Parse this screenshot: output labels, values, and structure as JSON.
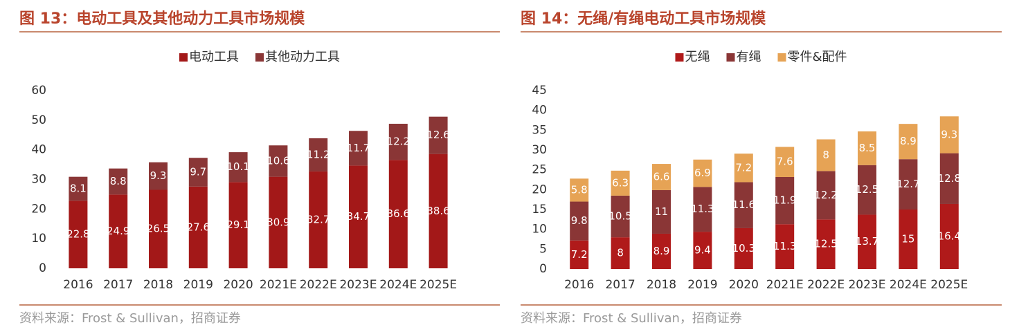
{
  "chart_data": [
    {
      "type": "bar",
      "stacked": true,
      "title": "图 13：电动工具及其他动力工具市场规模",
      "categories": [
        "2016",
        "2017",
        "2018",
        "2019",
        "2020",
        "2021E",
        "2022E",
        "2023E",
        "2024E",
        "2025E"
      ],
      "series": [
        {
          "name": "电动工具",
          "color": "#a31818",
          "values": [
            22.8,
            24.9,
            26.5,
            27.6,
            29.1,
            30.9,
            32.7,
            34.7,
            36.6,
            38.6
          ]
        },
        {
          "name": "其他动力工具",
          "color": "#8a3636",
          "values": [
            8.1,
            8.8,
            9.3,
            9.7,
            10.1,
            10.6,
            11.2,
            11.7,
            12.2,
            12.6
          ]
        }
      ],
      "ylim": [
        0,
        60
      ],
      "yticks": [
        0,
        10,
        20,
        30,
        40,
        50,
        60
      ],
      "source": "资料来源：Frost & Sullivan，招商证券"
    },
    {
      "type": "bar",
      "stacked": true,
      "title": "图 14：无绳/有绳电动工具市场规模",
      "categories": [
        "2016",
        "2017",
        "2018",
        "2019",
        "2020",
        "2021E",
        "2022E",
        "2023E",
        "2024E",
        "2025E"
      ],
      "series": [
        {
          "name": "无绳",
          "color": "#b01a1a",
          "values": [
            7.2,
            8,
            8.9,
            9.4,
            10.3,
            11.3,
            12.5,
            13.7,
            15,
            16.4
          ]
        },
        {
          "name": "有绳",
          "color": "#8a3636",
          "values": [
            9.8,
            10.5,
            11,
            11.3,
            11.6,
            11.9,
            12.2,
            12.5,
            12.7,
            12.8
          ]
        },
        {
          "name": "零件&配件",
          "color": "#e6a355",
          "values": [
            5.8,
            6.3,
            6.6,
            6.9,
            7.2,
            7.6,
            8,
            8.5,
            8.9,
            9.3
          ]
        }
      ],
      "ylim": [
        0,
        45
      ],
      "yticks": [
        0,
        5,
        10,
        15,
        20,
        25,
        30,
        35,
        40,
        45
      ],
      "source": "资料来源：Frost & Sullivan，招商证券"
    }
  ]
}
